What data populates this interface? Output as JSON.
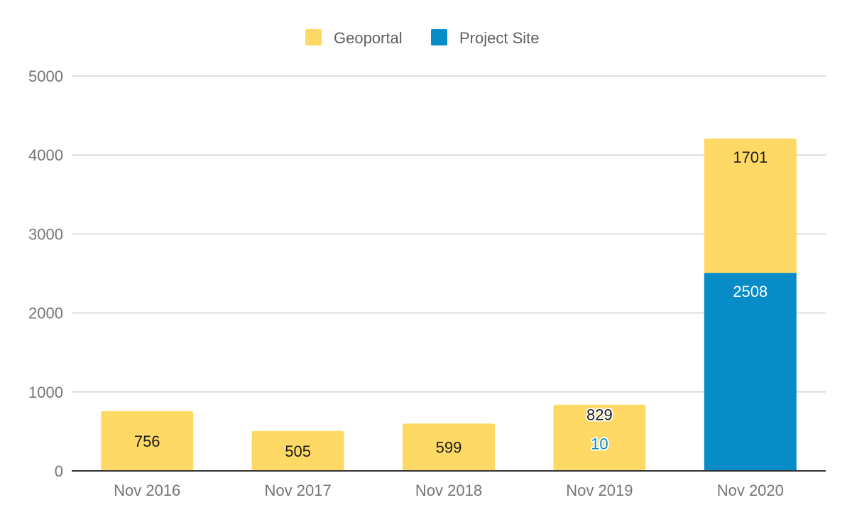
{
  "chart_data": {
    "type": "bar",
    "stacked": true,
    "categories": [
      "Nov 2016",
      "Nov 2017",
      "Nov 2018",
      "Nov 2019",
      "Nov 2020"
    ],
    "series": [
      {
        "name": "Project Site",
        "color": "#078cc7",
        "values": [
          0,
          0,
          0,
          10,
          2508
        ]
      },
      {
        "name": "Geoportal",
        "color": "#fed966",
        "values": [
          756,
          505,
          599,
          829,
          1701
        ]
      }
    ],
    "legend_order": [
      "Geoportal",
      "Project Site"
    ],
    "legend_position": "top",
    "ylim": [
      0,
      5000
    ],
    "yticks": [
      0,
      1000,
      2000,
      3000,
      4000,
      5000
    ],
    "grid": true,
    "data_labels": true
  }
}
